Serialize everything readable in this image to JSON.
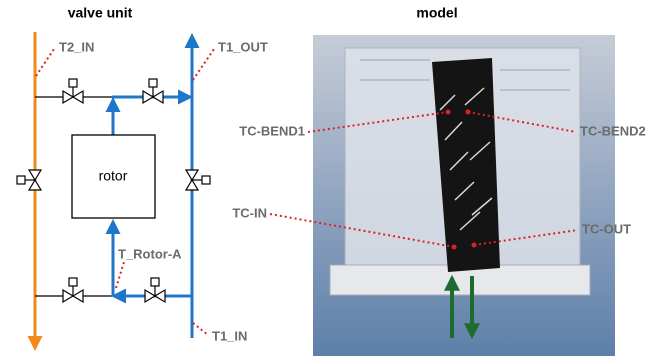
{
  "left_panel": {
    "title": "valve unit",
    "rotor": "rotor",
    "sensors": [
      "T2_IN",
      "T1_OUT",
      "T_Rotor-A",
      "T1_IN"
    ]
  },
  "right_panel": {
    "title": "model",
    "sensors": [
      "TC-BEND1",
      "TC-BEND2",
      "TC-IN",
      "TC-OUT"
    ]
  }
}
